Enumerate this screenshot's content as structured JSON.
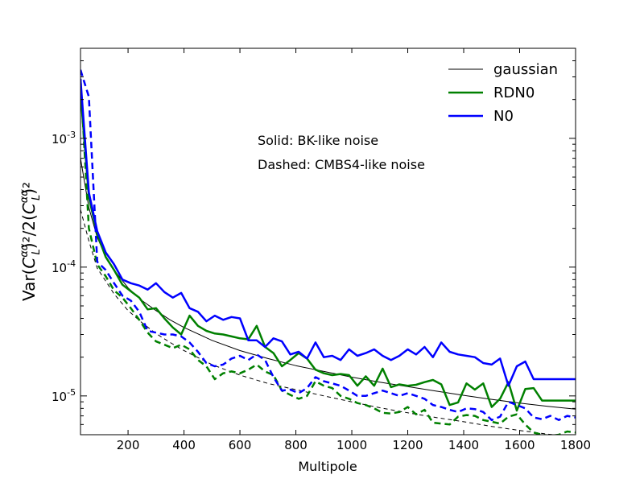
{
  "chart_data": {
    "type": "line",
    "title": "",
    "xlabel": "Multipole",
    "ylabel": "Var(C_L^αα)^2 / 2(C_L^αα)^2",
    "ylabel_parts": {
      "prefix": "Var(",
      "c1": "C",
      "sup1": "αα",
      "sub1": "L",
      "mid": ")²/2(",
      "c2": "C",
      "sup2": "αα",
      "sub2": "L",
      "suffix": ")²"
    },
    "xlim": [
      30,
      1800
    ],
    "ylim": [
      5e-06,
      0.005
    ],
    "yscale": "log",
    "xticks": [
      {
        "value": 200,
        "label": "200"
      },
      {
        "value": 400,
        "label": "400"
      },
      {
        "value": 600,
        "label": "600"
      },
      {
        "value": 800,
        "label": "800"
      },
      {
        "value": 1000,
        "label": "1000"
      },
      {
        "value": 1200,
        "label": "1200"
      },
      {
        "value": 1400,
        "label": "1400"
      },
      {
        "value": 1600,
        "label": "1600"
      },
      {
        "value": 1800,
        "label": "1800"
      }
    ],
    "yticks": [
      {
        "value": 1e-05,
        "base": "10",
        "exp": "-5"
      },
      {
        "value": 0.0001,
        "base": "10",
        "exp": "-4"
      },
      {
        "value": 0.001,
        "base": "10",
        "exp": "-3"
      }
    ],
    "legend": {
      "position": "top-right",
      "entries": [
        {
          "label": "gaussian",
          "color": "#000000",
          "width": 1
        },
        {
          "label": "RDN0",
          "color": "#008000",
          "width": 2.5
        },
        {
          "label": "N0",
          "color": "#0000ff",
          "width": 2.5
        }
      ]
    },
    "annotations": [
      "Solid: BK-like noise",
      "Dashed: CMBS4-like noise"
    ],
    "series": [
      {
        "name": "gaussian",
        "style": "solid",
        "color": "#000000",
        "width": 1,
        "x": [
          30,
          60,
          90,
          120,
          150,
          200,
          250,
          300,
          350,
          400,
          500,
          600,
          700,
          800,
          900,
          1000,
          1100,
          1200,
          1300,
          1400,
          1500,
          1600,
          1700,
          1800
        ],
        "values": [
          0.0007,
          0.00029,
          0.00017,
          0.000122,
          9.5e-05,
          6.9e-05,
          5.5e-05,
          4.6e-05,
          3.9e-05,
          3.4e-05,
          2.7e-05,
          2.25e-05,
          1.95e-05,
          1.72e-05,
          1.55e-05,
          1.4e-05,
          1.28e-05,
          1.18e-05,
          1.09e-05,
          1.01e-05,
          9.4e-06,
          8.8e-06,
          8.3e-06,
          7.9e-06
        ]
      },
      {
        "name": "gaussian",
        "style": "dashed",
        "color": "#000000",
        "width": 1,
        "x": [
          30,
          60,
          90,
          120,
          150,
          200,
          250,
          300,
          350,
          400,
          500,
          600,
          700,
          800,
          900,
          1000,
          1100,
          1200,
          1300,
          1400,
          1500,
          1600,
          1700,
          1800
        ],
        "values": [
          0.00028,
          0.00016,
          9.8e-05,
          7.8e-05,
          6.2e-05,
          4.6e-05,
          3.7e-05,
          3.05e-05,
          2.6e-05,
          2.25e-05,
          1.75e-05,
          1.45e-05,
          1.25e-05,
          1.12e-05,
          1e-05,
          9e-06,
          8.1e-06,
          7.4e-06,
          6.8e-06,
          6.3e-06,
          5.8e-06,
          5.4e-06,
          5.05e-06,
          4.8e-06
        ]
      },
      {
        "name": "RDN0",
        "style": "solid",
        "color": "#008000",
        "width": 2.5,
        "x": [
          30,
          60,
          90,
          120,
          150,
          180,
          210,
          240,
          270,
          300,
          330,
          360,
          390,
          420,
          450,
          480,
          510,
          540,
          570,
          600,
          630,
          660,
          690,
          720,
          750,
          780,
          810,
          840,
          870,
          900,
          930,
          960,
          990,
          1020,
          1050,
          1080,
          1110,
          1140,
          1170,
          1200,
          1230,
          1260,
          1290,
          1320,
          1350,
          1380,
          1410,
          1440,
          1470,
          1500,
          1530,
          1560,
          1590,
          1620,
          1650,
          1680,
          1710,
          1740,
          1770,
          1800
        ],
        "values": [
          0.0023,
          0.00035,
          0.00018,
          0.00012,
          9.5e-05,
          7.3e-05,
          6.5e-05,
          5.8e-05,
          4.7e-05,
          4.8e-05,
          4e-05,
          3.4e-05,
          3e-05,
          4.2e-05,
          3.5e-05,
          3.2e-05,
          3.05e-05,
          3e-05,
          2.9e-05,
          2.8e-05,
          2.75e-05,
          3.5e-05,
          2.4e-05,
          2.15e-05,
          1.7e-05,
          1.9e-05,
          2.15e-05,
          1.95e-05,
          1.6e-05,
          1.5e-05,
          1.45e-05,
          1.48e-05,
          1.45e-05,
          1.2e-05,
          1.42e-05,
          1.2e-05,
          1.63e-05,
          1.17e-05,
          1.23e-05,
          1.2e-05,
          1.22e-05,
          1.28e-05,
          1.33e-05,
          1.23e-05,
          8.5e-06,
          8.9e-06,
          1.25e-05,
          1.12e-05,
          1.25e-05,
          8.2e-06,
          9.5e-06,
          1.28e-05,
          7.7e-06,
          1.13e-05,
          1.15e-05,
          9.2e-06,
          9.2e-06,
          9.2e-06,
          9.2e-06,
          9.2e-06
        ]
      },
      {
        "name": "RDN0",
        "style": "dashed",
        "color": "#008000",
        "width": 2.5,
        "x": [
          30,
          60,
          90,
          120,
          150,
          180,
          210,
          240,
          270,
          300,
          330,
          360,
          390,
          420,
          450,
          480,
          510,
          540,
          570,
          600,
          630,
          660,
          690,
          720,
          750,
          780,
          810,
          840,
          870,
          900,
          930,
          960,
          990,
          1020,
          1050,
          1080,
          1110,
          1140,
          1170,
          1200,
          1230,
          1260,
          1290,
          1320,
          1350,
          1380,
          1410,
          1440,
          1470,
          1500,
          1530,
          1560,
          1590,
          1620,
          1650,
          1680,
          1710,
          1740,
          1770,
          1800
        ],
        "values": [
          0.0029,
          0.0002,
          0.000105,
          8.5e-05,
          6.6e-05,
          5.8e-05,
          4.8e-05,
          3.9e-05,
          3.1e-05,
          2.65e-05,
          2.5e-05,
          2.35e-05,
          2.5e-05,
          2.3e-05,
          1.9e-05,
          1.7e-05,
          1.35e-05,
          1.5e-05,
          1.55e-05,
          1.5e-05,
          1.6e-05,
          1.75e-05,
          1.55e-05,
          1.45e-05,
          1.1e-05,
          1.02e-05,
          9.5e-06,
          1e-05,
          1.3e-05,
          1.2e-05,
          1.15e-05,
          1e-05,
          9.5e-06,
          8.8e-06,
          8.5e-06,
          8e-06,
          7.4e-06,
          7.3e-06,
          7.5e-06,
          8.2e-06,
          7.2e-06,
          7.8e-06,
          6.2e-06,
          6.1e-06,
          6e-06,
          6.9e-06,
          7.1e-06,
          7e-06,
          6.5e-06,
          6.3e-06,
          6.1e-06,
          6.9e-06,
          7.2e-06,
          6e-06,
          5.2e-06,
          5e-06,
          4.9e-06,
          5e-06,
          5.3e-06,
          5.2e-06
        ]
      },
      {
        "name": "N0",
        "style": "solid",
        "color": "#0000ff",
        "width": 2.5,
        "x": [
          30,
          60,
          90,
          120,
          150,
          180,
          210,
          240,
          270,
          300,
          330,
          360,
          390,
          420,
          450,
          480,
          510,
          540,
          570,
          600,
          630,
          660,
          690,
          720,
          750,
          780,
          810,
          840,
          870,
          900,
          930,
          960,
          990,
          1020,
          1050,
          1080,
          1110,
          1140,
          1170,
          1200,
          1230,
          1260,
          1290,
          1320,
          1350,
          1380,
          1410,
          1440,
          1470,
          1500,
          1530,
          1560,
          1590,
          1620,
          1650,
          1680,
          1710,
          1740,
          1770,
          1800
        ],
        "values": [
          0.0029,
          0.00038,
          0.00019,
          0.00013,
          0.000105,
          8e-05,
          7.5e-05,
          7.2e-05,
          6.7e-05,
          7.5e-05,
          6.4e-05,
          5.8e-05,
          6.3e-05,
          4.8e-05,
          4.5e-05,
          3.8e-05,
          4.2e-05,
          3.9e-05,
          4.1e-05,
          4e-05,
          2.7e-05,
          2.7e-05,
          2.4e-05,
          2.8e-05,
          2.65e-05,
          2.1e-05,
          2.2e-05,
          1.95e-05,
          2.6e-05,
          2e-05,
          2.05e-05,
          1.9e-05,
          2.3e-05,
          2.05e-05,
          2.15e-05,
          2.3e-05,
          2.05e-05,
          1.9e-05,
          2.05e-05,
          2.3e-05,
          2.1e-05,
          2.4e-05,
          2e-05,
          2.6e-05,
          2.2e-05,
          2.1e-05,
          2.05e-05,
          2e-05,
          1.8e-05,
          1.75e-05,
          1.95e-05,
          1.2e-05,
          1.7e-05,
          1.85e-05,
          1.35e-05,
          1.35e-05,
          1.35e-05,
          1.35e-05,
          1.35e-05,
          1.35e-05
        ]
      },
      {
        "name": "N0",
        "style": "dashed",
        "color": "#0000ff",
        "width": 2.5,
        "x": [
          30,
          60,
          90,
          120,
          150,
          180,
          210,
          240,
          270,
          300,
          330,
          360,
          390,
          420,
          450,
          480,
          510,
          540,
          570,
          600,
          630,
          660,
          690,
          720,
          750,
          780,
          810,
          840,
          870,
          900,
          930,
          960,
          990,
          1020,
          1050,
          1080,
          1110,
          1140,
          1170,
          1200,
          1230,
          1260,
          1290,
          1320,
          1350,
          1380,
          1410,
          1440,
          1470,
          1500,
          1530,
          1560,
          1590,
          1620,
          1650,
          1680,
          1710,
          1740,
          1770,
          1800
        ],
        "values": [
          0.0034,
          0.0021,
          0.00011,
          9.5e-05,
          7.5e-05,
          6e-05,
          5.5e-05,
          4.5e-05,
          3.2e-05,
          3.1e-05,
          3e-05,
          3e-05,
          2.9e-05,
          2.6e-05,
          2.2e-05,
          1.8e-05,
          1.7e-05,
          1.75e-05,
          1.95e-05,
          2.05e-05,
          1.9e-05,
          2.1e-05,
          1.9e-05,
          1.4e-05,
          1.1e-05,
          1.12e-05,
          1.05e-05,
          1.15e-05,
          1.4e-05,
          1.3e-05,
          1.25e-05,
          1.2e-05,
          1.1e-05,
          1e-05,
          1e-05,
          1.05e-05,
          1.1e-05,
          1.05e-05,
          1e-05,
          1.05e-05,
          1e-05,
          9.5e-06,
          8.5e-06,
          8.2e-06,
          7.8e-06,
          7.5e-06,
          8e-06,
          7.9e-06,
          7.5e-06,
          6.5e-06,
          6.9e-06,
          9e-06,
          8.5e-06,
          8e-06,
          6.8e-06,
          6.6e-06,
          7e-06,
          6.5e-06,
          7e-06,
          6.8e-06
        ]
      }
    ]
  }
}
